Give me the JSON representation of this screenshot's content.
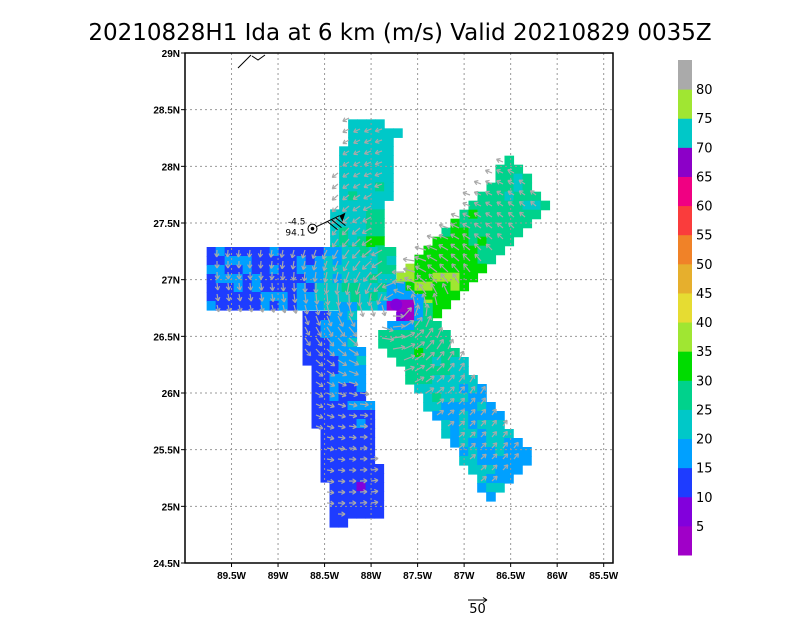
{
  "chart_data": {
    "type": "heatmap",
    "title": "20210828H1 Ida at 6 km (m/s) Valid 20210829 0035Z",
    "xlabel": "",
    "ylabel": "",
    "x_ticks": [
      "89.5W",
      "89W",
      "88.5W",
      "88W",
      "87.5W",
      "87W",
      "86.5W",
      "86W",
      "85.5W"
    ],
    "y_ticks": [
      "29N",
      "28.5N",
      "28N",
      "27.5N",
      "27N",
      "26.5N",
      "26N",
      "25.5N",
      "25N",
      "24.5N"
    ],
    "xlim": [
      -90.0,
      -85.4
    ],
    "ylim": [
      24.5,
      29.0
    ],
    "grid": true,
    "colorbar": {
      "levels": [
        5,
        10,
        15,
        20,
        25,
        30,
        35,
        40,
        45,
        50,
        55,
        60,
        65,
        70,
        75,
        80
      ],
      "colors": [
        "#a000c8",
        "#8200dc",
        "#1e3cff",
        "#00a0ff",
        "#00c8c8",
        "#00d28c",
        "#00dc00",
        "#a0e632",
        "#e6dc32",
        "#e6af2d",
        "#f08228",
        "#fa3c3c",
        "#f00082",
        "#8c00c8",
        "#00c8c8",
        "#a0e632",
        "#aaaaaa"
      ]
    },
    "storm_center": {
      "lon": -87.73,
      "lat": 26.78,
      "speed": 5
    },
    "dropsonde": {
      "lon": -88.63,
      "lat": 27.45,
      "value_top": "-4.5",
      "value_bottom": "94.1"
    },
    "wind_barb_speed_kt": 70,
    "reference_vector": {
      "label": "50",
      "speed": 50
    },
    "legs": [
      {
        "name": "north",
        "center": [
          -88.15,
          27.7
        ],
        "angle": 80,
        "length_deg": 1.5,
        "width_deg": 0.55,
        "base_speed": 22,
        "peak_speed": 30
      },
      {
        "name": "northeast",
        "center": [
          -87.05,
          27.3
        ],
        "angle": 40,
        "length_deg": 1.9,
        "width_deg": 0.6,
        "base_speed": 27,
        "peak_speed": 35
      },
      {
        "name": "west",
        "center": [
          -88.8,
          27.05
        ],
        "angle": 0,
        "length_deg": 2.0,
        "width_deg": 0.62,
        "base_speed": 14,
        "peak_speed": 26
      },
      {
        "name": "southeast",
        "center": [
          -87.15,
          26.0
        ],
        "angle": -50,
        "length_deg": 1.9,
        "width_deg": 0.58,
        "base_speed": 19,
        "peak_speed": 28
      },
      {
        "name": "southwest",
        "center": [
          -88.35,
          25.85
        ],
        "angle": -80,
        "length_deg": 1.9,
        "width_deg": 0.6,
        "base_speed": 12,
        "peak_speed": 20
      }
    ]
  }
}
